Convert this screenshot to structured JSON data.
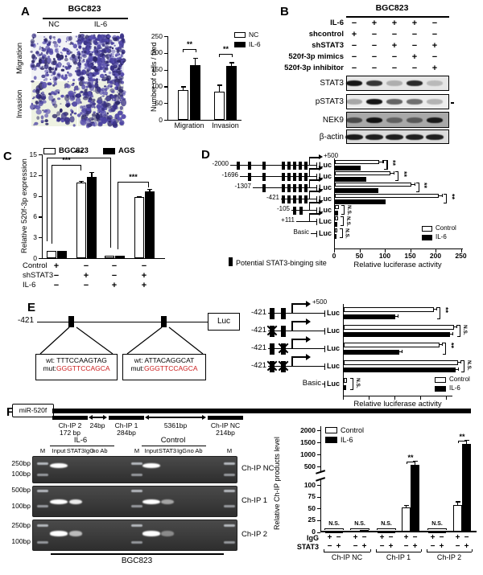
{
  "colors": {
    "bar_control_fill": "#ffffff",
    "bar_treatment_fill": "#000000",
    "mut_red": "#cc2020",
    "stain_purple": "#3a3286",
    "gel_bg": "#3f3f3f"
  },
  "panelA": {
    "label": "A",
    "title": "BGC823",
    "col_headers": [
      "NC",
      "IL-6"
    ],
    "row_headers": [
      "Migration",
      "Invasion"
    ],
    "images": [
      {
        "row": "Migration",
        "col": "NC",
        "density": 170,
        "seed": 11,
        "bg": "#f2f3f6",
        "rmax": 2.2
      },
      {
        "row": "Migration",
        "col": "IL-6",
        "density": 430,
        "seed": 22,
        "bg": "#eef0f4",
        "rmax": 2.4
      },
      {
        "row": "Invasion",
        "col": "NC",
        "density": 115,
        "seed": 33,
        "bg": "#eef2e2",
        "rmax": 3.1
      },
      {
        "row": "Invasion",
        "col": "IL-6",
        "density": 225,
        "seed": 44,
        "bg": "#edf1e2",
        "rmax": 3.1
      }
    ]
  },
  "panelB": {
    "label": "B",
    "title": "BGC823",
    "conditions": [
      {
        "label": "IL-6",
        "values": [
          "−",
          "+",
          "+",
          "+",
          "−"
        ]
      },
      {
        "label": "shcontrol",
        "values": [
          "+",
          "−",
          "−",
          "−",
          "−"
        ]
      },
      {
        "label": "shSTAT3",
        "values": [
          "−",
          "−",
          "+",
          "−",
          "+"
        ]
      },
      {
        "label": "520f-3p mimics",
        "values": [
          "−",
          "−",
          "−",
          "+",
          "−"
        ]
      },
      {
        "label": "520f-3p inhibitor",
        "values": [
          "−",
          "−",
          "−",
          "−",
          "+"
        ]
      }
    ],
    "blots": [
      {
        "label": "STAT3",
        "bg": "#e6e6e6",
        "bands": [
          0.95,
          0.8,
          0.25,
          0.85,
          0.2
        ]
      },
      {
        "label": "pSTAT3",
        "bg": "#ededed",
        "bands": [
          0.3,
          0.95,
          0.6,
          0.55,
          0.25
        ]
      },
      {
        "label": "NEK9",
        "bg": "#a9a9a9",
        "bands": [
          0.6,
          0.95,
          0.45,
          0.5,
          0.9
        ]
      },
      {
        "label": "β-actin",
        "bg": "#dcdcdc",
        "bands": [
          0.92,
          0.9,
          0.9,
          0.9,
          0.9
        ]
      }
    ]
  },
  "panelC": {
    "label": "C",
    "legend": [
      "BGC823",
      "AGS"
    ],
    "condition_rows": [
      {
        "label": "Control",
        "values": [
          "+",
          "−",
          "−",
          "−"
        ]
      },
      {
        "label": "shSTAT3",
        "values": [
          "−",
          "+",
          "−",
          "+"
        ]
      },
      {
        "label": "IL-6",
        "values": [
          "−",
          "−",
          "+",
          "+"
        ]
      }
    ]
  },
  "panelD": {
    "label": "D",
    "tss_label": "+500",
    "luc_label": "Luc",
    "site_legend": "Potential STAT3-binging site",
    "constructs": [
      {
        "name": "-2000",
        "start": 286,
        "boxes": [
          296,
          310,
          328,
          352,
          359,
          366,
          373,
          380
        ],
        "arrow": true
      },
      {
        "name": "-1696",
        "start": 298,
        "boxes": [
          310,
          328,
          352,
          359,
          366,
          373,
          380
        ],
        "arrow": true
      },
      {
        "name": "-1307",
        "start": 314,
        "boxes": [
          328,
          352,
          359,
          366,
          373,
          380
        ],
        "arrow": true
      },
      {
        "name": "-421",
        "start": 349,
        "boxes": [
          352,
          359,
          366,
          373,
          380
        ],
        "arrow": true
      },
      {
        "name": "-105",
        "start": 362,
        "boxes": [
          366,
          374
        ],
        "arrow": true
      },
      {
        "name": "+111",
        "start": 368,
        "boxes": [],
        "arrow": true
      },
      {
        "name": "Basic",
        "start": 386,
        "boxes": [],
        "arrow": false
      }
    ]
  },
  "panelE": {
    "label": "E",
    "promoter_label": "-421",
    "luc_label": "Luc",
    "tss_label": "+500",
    "basic_label": "Basic",
    "callouts": [
      {
        "wt": "wt: TTTCCAAGTAG",
        "mut_prefix": "mut:",
        "mut_seq": "GGGTTCCAGCA"
      },
      {
        "wt": "wt: ATTACAGGCAT",
        "mut_prefix": "mut:",
        "mut_seq": "GGGTTCCAGCA"
      }
    ],
    "constructs": [
      {
        "name": "-421",
        "site1": "wt",
        "site2": "wt"
      },
      {
        "name": "-421",
        "site1": "mut",
        "site2": "wt"
      },
      {
        "name": "-421",
        "site1": "wt",
        "site2": "mut"
      },
      {
        "name": "-421",
        "site1": "mut",
        "site2": "mut"
      },
      {
        "name": "Basic"
      }
    ]
  },
  "panelF": {
    "label": "F",
    "gene_label": "miR-520f",
    "cell_line": "BGC823",
    "map_segments": [
      {
        "label": "Ch-IP 2",
        "size": "172 bp"
      },
      {
        "label": "24bp",
        "type": "distance"
      },
      {
        "label": "Ch-IP 1",
        "size": "284bp"
      },
      {
        "label": "5361bp",
        "type": "distance"
      },
      {
        "label": "Ch-IP NC",
        "size": "214bp"
      }
    ],
    "gel_group_headers": [
      "IL-6",
      "Control"
    ],
    "lane_headers": [
      "M",
      "Input",
      "STAT3",
      "IgG",
      "no Ab",
      "M",
      "Input",
      "STAT3",
      "IgG",
      "no Ab",
      "M"
    ],
    "gel_rows": [
      {
        "name": "Ch-IP NC",
        "markers": [
          {
            "label": "250bp",
            "rel": 0.28
          },
          {
            "label": "100bp",
            "rel": 0.68
          }
        ],
        "band_rel": 0.34,
        "lanes": [
          null,
          1,
          0,
          0,
          0,
          null,
          1,
          0,
          0,
          0,
          null
        ]
      },
      {
        "name": "Ch-IP 1",
        "markers": [
          {
            "label": "500bp",
            "rel": 0.16
          },
          {
            "label": "100bp",
            "rel": 0.66
          }
        ],
        "band_rel": 0.5,
        "lanes": [
          null,
          1,
          0.85,
          0,
          0,
          null,
          1,
          0.35,
          0,
          0,
          null
        ]
      },
      {
        "name": "Ch-IP 2",
        "markers": [
          {
            "label": "250bp",
            "rel": 0.2
          },
          {
            "label": "100bp",
            "rel": 0.72
          }
        ],
        "band_rel": 0.44,
        "lanes": [
          null,
          1,
          0.5,
          0,
          0,
          null,
          1,
          0.15,
          0,
          0,
          null
        ]
      }
    ]
  },
  "chart_data": [
    {
      "panel": "A",
      "type": "bar",
      "categories": [
        "Migration",
        "Invasion"
      ],
      "series": [
        {
          "name": "NC",
          "values": [
            90,
            85
          ],
          "errors": [
            10,
            20
          ]
        },
        {
          "name": "IL-6",
          "values": [
            163,
            162
          ],
          "errors": [
            22,
            10
          ]
        }
      ],
      "ylabel": "Number of cells / filed",
      "ylim": [
        0,
        250
      ],
      "yticks": [
        0,
        50,
        100,
        150,
        200,
        250
      ],
      "significance": [
        "**",
        "**"
      ],
      "legend_position": "top-right"
    },
    {
      "panel": "C",
      "type": "bar",
      "categories": [
        "Control",
        "shSTAT3",
        "IL-6",
        "shSTAT3+IL-6"
      ],
      "series": [
        {
          "name": "BGC823",
          "values": [
            1.05,
            10.9,
            0.4,
            8.8
          ],
          "errors": [
            0.1,
            0.3,
            0.05,
            0.2
          ]
        },
        {
          "name": "AGS",
          "values": [
            1.0,
            11.7,
            0.35,
            9.7
          ],
          "errors": [
            0.1,
            0.8,
            0.05,
            0.3
          ]
        }
      ],
      "ylabel": "Relative 520f-3p expression",
      "ylim": [
        0,
        15
      ],
      "yticks": [
        0,
        3,
        6,
        9,
        12,
        15
      ],
      "significance": [
        "***",
        "***",
        "***"
      ]
    },
    {
      "panel": "D",
      "type": "bar-horizontal",
      "categories": [
        "-2000",
        "-1696",
        "-1307",
        "-421",
        "-105",
        "+111",
        "Basic"
      ],
      "series": [
        {
          "name": "Control",
          "values": [
            88,
            110,
            150,
            205,
            8,
            6,
            4
          ]
        },
        {
          "name": "IL-6",
          "values": [
            50,
            62,
            85,
            100,
            6,
            4,
            3
          ]
        }
      ],
      "xlabel": "Relative luciferase activity",
      "xlim": [
        0,
        250
      ],
      "xticks": [
        0,
        50,
        100,
        150,
        200,
        250
      ],
      "significance": [
        "**",
        "**",
        "**",
        "**",
        "N.S.",
        "N.S.",
        "N.S."
      ]
    },
    {
      "panel": "E",
      "type": "bar-horizontal",
      "categories": [
        "-421 wt/wt",
        "-421 mut/wt",
        "-421 wt/mut",
        "-421 mut/mut",
        "Basic"
      ],
      "series": [
        {
          "name": "Control",
          "values": [
            112,
            137,
            119,
            142,
            4
          ]
        },
        {
          "name": "IL-6",
          "values": [
            64,
            132,
            69,
            139,
            3
          ]
        }
      ],
      "xlabel": "Relative luciferase activity",
      "xlim": [
        0,
        160
      ],
      "xticks_labeled": false,
      "significance": [
        "**",
        "N.S.",
        "**",
        "N.S.",
        "N.S."
      ]
    },
    {
      "panel": "F",
      "type": "bar",
      "broken_axis": true,
      "ylabel": "Relative Ch-IP products level",
      "lower_ylim": [
        0,
        100
      ],
      "lower_yticks": [
        0,
        25,
        50,
        75,
        100
      ],
      "upper_ylim": [
        500,
        2000
      ],
      "upper_yticks": [
        500,
        1000,
        1500,
        2000
      ],
      "legend": [
        "Control",
        "IL-6"
      ],
      "group_labels": [
        "Ch-IP NC",
        "Ch-IP 1",
        "Ch-IP 2"
      ],
      "groups": [
        {
          "label": "Ch-IP NC",
          "pairs": [
            {
              "control": 1,
              "il6": 1,
              "sig": "N.S."
            },
            {
              "control": 2,
              "il6": 4,
              "sig": "N.S."
            }
          ]
        },
        {
          "label": "Ch-IP 1",
          "pairs": [
            {
              "control": 1,
              "il6": 1,
              "sig": "N.S."
            },
            {
              "control": 52,
              "il6": 580,
              "sig": "**",
              "err_control": 4,
              "err_il6": 35
            }
          ]
        },
        {
          "label": "Ch-IP 2",
          "pairs": [
            {
              "control": 1,
              "il6": 1,
              "sig": "N.S."
            },
            {
              "control": 57,
              "il6": 1450,
              "sig": "**",
              "err_control": 8,
              "err_il6": 70
            }
          ]
        }
      ],
      "igg_row": {
        "label": "IgG",
        "values": [
          "+",
          "−",
          "+",
          "−",
          "+",
          "−",
          "+",
          "−",
          "+",
          "−",
          "+",
          "−"
        ]
      },
      "stat3_row": {
        "label": "STAT3",
        "values": [
          "−",
          "+",
          "−",
          "+",
          "−",
          "+",
          "−",
          "+",
          "−",
          "+",
          "−",
          "+"
        ]
      }
    }
  ]
}
